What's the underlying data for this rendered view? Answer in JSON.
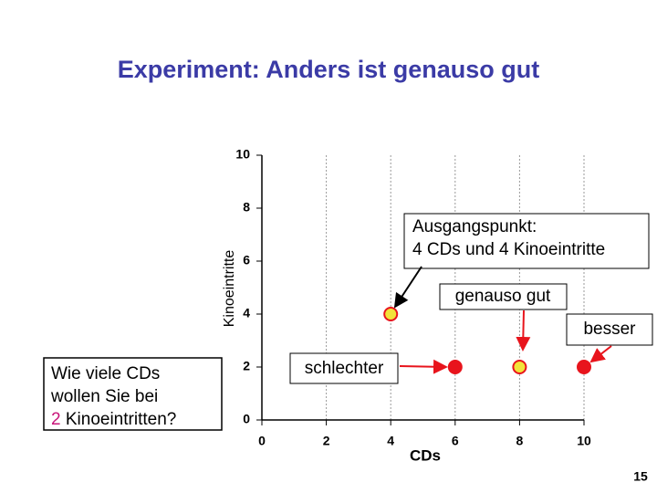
{
  "chart_data": {
    "type": "scatter",
    "title": "Experiment: Anders ist genauso gut",
    "xlabel": "CDs",
    "ylabel": "Kinoeintritte",
    "x": [
      4,
      6,
      8,
      10
    ],
    "values": [
      4,
      2,
      2,
      2
    ],
    "colors": [
      "#f2e33a",
      "#e8141c",
      "#f2e33a",
      "#e8141c"
    ],
    "xlim": [
      0,
      10
    ],
    "ylim": [
      0,
      10
    ],
    "xticks": [
      0,
      2,
      4,
      6,
      8,
      10
    ],
    "yticks": [
      0,
      2,
      4,
      6,
      8,
      10
    ],
    "grid": true,
    "annotations": {
      "start": [
        "Ausgangspunkt:",
        "4 CDs und 4 Kinoeintritte"
      ],
      "same": "genauso gut",
      "better": "besser",
      "worse": "schlechter"
    }
  },
  "question": {
    "lines": [
      "Wie viele CDs",
      "wollen Sie bei"
    ],
    "number": "2",
    "rest": " Kinoeintritten?"
  },
  "page_number": "15"
}
